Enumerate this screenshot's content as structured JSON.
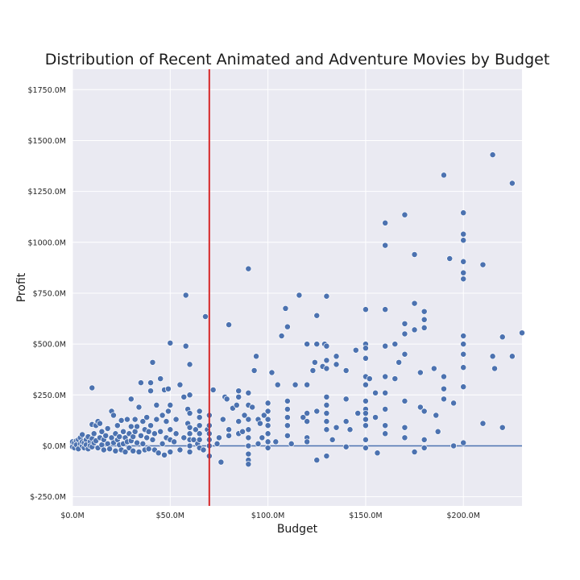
{
  "chart_data": {
    "type": "scatter",
    "title": "Distribution of Recent Animated and Adventure Movies by Budget",
    "xlabel": "Budget",
    "ylabel": "Profit",
    "xlim": [
      0,
      230
    ],
    "ylim": [
      -295,
      1850
    ],
    "x_ticks": [
      {
        "value": 0,
        "label": "$0.0M"
      },
      {
        "value": 50,
        "label": "$50.0M"
      },
      {
        "value": 100,
        "label": "$100.0M"
      },
      {
        "value": 150,
        "label": "$150.0M"
      },
      {
        "value": 200,
        "label": "$200.0M"
      }
    ],
    "y_ticks": [
      {
        "value": -250,
        "label": "$-250.0M"
      },
      {
        "value": 0,
        "label": "$0.0M"
      },
      {
        "value": 250,
        "label": "$250.0M"
      },
      {
        "value": 500,
        "label": "$500.0M"
      },
      {
        "value": 750,
        "label": "$750.0M"
      },
      {
        "value": 1000,
        "label": "$1000.0M"
      },
      {
        "value": 1250,
        "label": "$1250.0M"
      },
      {
        "value": 1500,
        "label": "$1500.0M"
      },
      {
        "value": 1750,
        "label": "$1750.0M"
      }
    ],
    "grid": true,
    "vertical_reference_line": {
      "x": 70,
      "color": "#d62728"
    },
    "horizontal_reference_line": {
      "y": 0,
      "color": "#4c72b0"
    },
    "colors": {
      "points": "#4c72b0",
      "background": "#eaeaf2",
      "grid": "#ffffff"
    },
    "series": [
      {
        "points": [
          [
            0,
            10
          ],
          [
            0,
            -5
          ],
          [
            0,
            20
          ],
          [
            1,
            15
          ],
          [
            1,
            -10
          ],
          [
            2,
            25
          ],
          [
            2,
            5
          ],
          [
            3,
            30
          ],
          [
            3,
            -15
          ],
          [
            4,
            10
          ],
          [
            4,
            40
          ],
          [
            5,
            0
          ],
          [
            5,
            20
          ],
          [
            5,
            55
          ],
          [
            6,
            15
          ],
          [
            6,
            -10
          ],
          [
            7,
            30
          ],
          [
            7,
            5
          ],
          [
            8,
            45
          ],
          [
            8,
            -15
          ],
          [
            9,
            20
          ],
          [
            9,
            0
          ],
          [
            10,
            105
          ],
          [
            10,
            285
          ],
          [
            10,
            35
          ],
          [
            10,
            -5
          ],
          [
            11,
            60
          ],
          [
            11,
            15
          ],
          [
            12,
            100
          ],
          [
            12,
            25
          ],
          [
            13,
            120
          ],
          [
            13,
            -10
          ],
          [
            14,
            110
          ],
          [
            14,
            40
          ],
          [
            15,
            5
          ],
          [
            15,
            70
          ],
          [
            16,
            30
          ],
          [
            16,
            -20
          ],
          [
            17,
            50
          ],
          [
            18,
            10
          ],
          [
            18,
            85
          ],
          [
            19,
            -15
          ],
          [
            20,
            40
          ],
          [
            20,
            170
          ],
          [
            21,
            150
          ],
          [
            21,
            15
          ],
          [
            22,
            60
          ],
          [
            22,
            -25
          ],
          [
            23,
            100
          ],
          [
            23,
            30
          ],
          [
            24,
            5
          ],
          [
            24,
            45
          ],
          [
            25,
            125
          ],
          [
            25,
            -20
          ],
          [
            26,
            70
          ],
          [
            26,
            10
          ],
          [
            27,
            40
          ],
          [
            27,
            -30
          ],
          [
            28,
            130
          ],
          [
            28,
            20
          ],
          [
            29,
            60
          ],
          [
            29,
            -10
          ],
          [
            30,
            95
          ],
          [
            30,
            230
          ],
          [
            30,
            25
          ],
          [
            31,
            45
          ],
          [
            31,
            -25
          ],
          [
            32,
            130
          ],
          [
            32,
            70
          ],
          [
            33,
            15
          ],
          [
            33,
            95
          ],
          [
            34,
            190
          ],
          [
            34,
            -30
          ],
          [
            35,
            310
          ],
          [
            35,
            50
          ],
          [
            36,
            120
          ],
          [
            36,
            10
          ],
          [
            37,
            80
          ],
          [
            37,
            -20
          ],
          [
            38,
            140
          ],
          [
            38,
            40
          ],
          [
            39,
            70
          ],
          [
            39,
            -15
          ],
          [
            40,
            100
          ],
          [
            40,
            310
          ],
          [
            40,
            270
          ],
          [
            41,
            410
          ],
          [
            41,
            30
          ],
          [
            42,
            60
          ],
          [
            42,
            -20
          ],
          [
            43,
            200
          ],
          [
            43,
            130
          ],
          [
            44,
            -35
          ],
          [
            45,
            70
          ],
          [
            45,
            330
          ],
          [
            46,
            150
          ],
          [
            46,
            10
          ],
          [
            47,
            275
          ],
          [
            47,
            -45
          ],
          [
            48,
            40
          ],
          [
            48,
            120
          ],
          [
            49,
            280
          ],
          [
            49,
            170
          ],
          [
            50,
            505
          ],
          [
            50,
            200
          ],
          [
            50,
            80
          ],
          [
            50,
            30
          ],
          [
            50,
            -30
          ],
          [
            52,
            20
          ],
          [
            53,
            60
          ],
          [
            53,
            130
          ],
          [
            55,
            300
          ],
          [
            55,
            -20
          ],
          [
            57,
            240
          ],
          [
            57,
            40
          ],
          [
            58,
            740
          ],
          [
            58,
            490
          ],
          [
            59,
            180
          ],
          [
            59,
            110
          ],
          [
            60,
            400
          ],
          [
            60,
            250
          ],
          [
            60,
            160
          ],
          [
            60,
            90
          ],
          [
            60,
            60
          ],
          [
            60,
            30
          ],
          [
            60,
            0
          ],
          [
            60,
            -30
          ],
          [
            62,
            30
          ],
          [
            63,
            80
          ],
          [
            64,
            10
          ],
          [
            65,
            170
          ],
          [
            65,
            140
          ],
          [
            65,
            100
          ],
          [
            65,
            60
          ],
          [
            65,
            30
          ],
          [
            65,
            -10
          ],
          [
            67,
            -20
          ],
          [
            68,
            635
          ],
          [
            69,
            80
          ],
          [
            70,
            150
          ],
          [
            70,
            100
          ],
          [
            70,
            60
          ],
          [
            70,
            30
          ],
          [
            70,
            0
          ],
          [
            70,
            -50
          ],
          [
            72,
            275
          ],
          [
            74,
            10
          ],
          [
            75,
            40
          ],
          [
            76,
            -80
          ],
          [
            77,
            130
          ],
          [
            78,
            240
          ],
          [
            79,
            230
          ],
          [
            80,
            595
          ],
          [
            80,
            80
          ],
          [
            80,
            50
          ],
          [
            82,
            185
          ],
          [
            84,
            200
          ],
          [
            85,
            270
          ],
          [
            85,
            240
          ],
          [
            85,
            120
          ],
          [
            85,
            60
          ],
          [
            87,
            70
          ],
          [
            88,
            150
          ],
          [
            90,
            870
          ],
          [
            90,
            260
          ],
          [
            90,
            200
          ],
          [
            90,
            130
          ],
          [
            90,
            80
          ],
          [
            90,
            40
          ],
          [
            90,
            0
          ],
          [
            90,
            -40
          ],
          [
            90,
            -70
          ],
          [
            90,
            -90
          ],
          [
            92,
            190
          ],
          [
            93,
            370
          ],
          [
            94,
            440
          ],
          [
            95,
            10
          ],
          [
            95,
            130
          ],
          [
            96,
            110
          ],
          [
            97,
            40
          ],
          [
            98,
            150
          ],
          [
            100,
            210
          ],
          [
            100,
            170
          ],
          [
            100,
            130
          ],
          [
            100,
            100
          ],
          [
            100,
            60
          ],
          [
            100,
            20
          ],
          [
            100,
            -10
          ],
          [
            102,
            360
          ],
          [
            104,
            20
          ],
          [
            105,
            300
          ],
          [
            107,
            540
          ],
          [
            109,
            675
          ],
          [
            110,
            585
          ],
          [
            110,
            220
          ],
          [
            110,
            180
          ],
          [
            110,
            140
          ],
          [
            110,
            100
          ],
          [
            110,
            50
          ],
          [
            112,
            10
          ],
          [
            114,
            300
          ],
          [
            116,
            740
          ],
          [
            118,
            140
          ],
          [
            120,
            500
          ],
          [
            120,
            300
          ],
          [
            120,
            160
          ],
          [
            120,
            120
          ],
          [
            120,
            40
          ],
          [
            120,
            20
          ],
          [
            123,
            370
          ],
          [
            124,
            410
          ],
          [
            125,
            640
          ],
          [
            125,
            500
          ],
          [
            125,
            170
          ],
          [
            125,
            -70
          ],
          [
            128,
            390
          ],
          [
            129,
            500
          ],
          [
            130,
            735
          ],
          [
            130,
            490
          ],
          [
            130,
            420
          ],
          [
            130,
            380
          ],
          [
            130,
            240
          ],
          [
            130,
            200
          ],
          [
            130,
            160
          ],
          [
            130,
            120
          ],
          [
            130,
            80
          ],
          [
            130,
            -50
          ],
          [
            133,
            30
          ],
          [
            135,
            400
          ],
          [
            135,
            90
          ],
          [
            135,
            440
          ],
          [
            140,
            370
          ],
          [
            140,
            230
          ],
          [
            140,
            120
          ],
          [
            140,
            -5
          ],
          [
            142,
            80
          ],
          [
            145,
            470
          ],
          [
            146,
            160
          ],
          [
            150,
            670
          ],
          [
            150,
            500
          ],
          [
            150,
            480
          ],
          [
            150,
            430
          ],
          [
            150,
            340
          ],
          [
            150,
            300
          ],
          [
            150,
            220
          ],
          [
            150,
            180
          ],
          [
            150,
            160
          ],
          [
            150,
            130
          ],
          [
            150,
            100
          ],
          [
            150,
            30
          ],
          [
            150,
            -10
          ],
          [
            152,
            330
          ],
          [
            155,
            260
          ],
          [
            155,
            140
          ],
          [
            156,
            -35
          ],
          [
            160,
            1095
          ],
          [
            160,
            985
          ],
          [
            160,
            670
          ],
          [
            160,
            490
          ],
          [
            160,
            340
          ],
          [
            160,
            260
          ],
          [
            160,
            180
          ],
          [
            160,
            100
          ],
          [
            160,
            60
          ],
          [
            165,
            500
          ],
          [
            165,
            330
          ],
          [
            167,
            410
          ],
          [
            170,
            1135
          ],
          [
            170,
            600
          ],
          [
            170,
            550
          ],
          [
            170,
            450
          ],
          [
            170,
            220
          ],
          [
            170,
            90
          ],
          [
            170,
            40
          ],
          [
            175,
            940
          ],
          [
            175,
            700
          ],
          [
            175,
            570
          ],
          [
            175,
            -30
          ],
          [
            178,
            360
          ],
          [
            178,
            190
          ],
          [
            180,
            660
          ],
          [
            180,
            620
          ],
          [
            180,
            580
          ],
          [
            180,
            170
          ],
          [
            180,
            -10
          ],
          [
            180,
            30
          ],
          [
            185,
            380
          ],
          [
            186,
            150
          ],
          [
            187,
            70
          ],
          [
            190,
            1330
          ],
          [
            190,
            340
          ],
          [
            190,
            280
          ],
          [
            190,
            230
          ],
          [
            193,
            920
          ],
          [
            195,
            210
          ],
          [
            195,
            0
          ],
          [
            200,
            1145
          ],
          [
            200,
            1040
          ],
          [
            200,
            1010
          ],
          [
            200,
            905
          ],
          [
            200,
            850
          ],
          [
            200,
            820
          ],
          [
            200,
            540
          ],
          [
            200,
            500
          ],
          [
            200,
            450
          ],
          [
            200,
            385
          ],
          [
            200,
            290
          ],
          [
            200,
            15
          ],
          [
            210,
            890
          ],
          [
            210,
            110
          ],
          [
            215,
            1430
          ],
          [
            215,
            440
          ],
          [
            216,
            380
          ],
          [
            220,
            535
          ],
          [
            220,
            90
          ],
          [
            225,
            1290
          ],
          [
            225,
            440
          ],
          [
            230,
            555
          ]
        ]
      }
    ]
  }
}
